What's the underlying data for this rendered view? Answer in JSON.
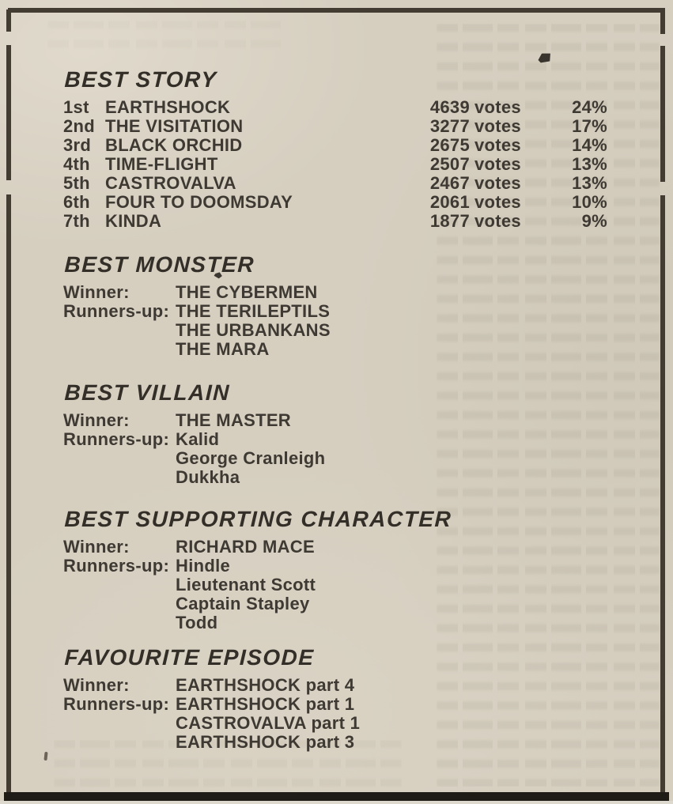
{
  "sections": {
    "best_story": {
      "title": "BEST STORY",
      "rows": [
        {
          "rank": "1st",
          "name": "EARTHSHOCK",
          "votes": "4639",
          "votes_word": "votes",
          "pct": "24%"
        },
        {
          "rank": "2nd",
          "name": "THE VISITATION",
          "votes": "3277",
          "votes_word": "votes",
          "pct": "17%"
        },
        {
          "rank": "3rd",
          "name": "BLACK ORCHID",
          "votes": "2675",
          "votes_word": "votes",
          "pct": "14%"
        },
        {
          "rank": "4th",
          "name": "TIME-FLIGHT",
          "votes": "2507",
          "votes_word": "votes",
          "pct": "13%"
        },
        {
          "rank": "5th",
          "name": "CASTROVALVA",
          "votes": "2467",
          "votes_word": "votes",
          "pct": "13%"
        },
        {
          "rank": "6th",
          "name": "FOUR TO DOOMSDAY",
          "votes": "2061",
          "votes_word": "votes",
          "pct": "10%"
        },
        {
          "rank": "7th",
          "name": "KINDA",
          "votes": "1877",
          "votes_word": "votes",
          "pct": "9%"
        }
      ]
    },
    "best_monster": {
      "title": "BEST MONSTER",
      "winner_label": "Winner:",
      "runners_label": "Runners-up:",
      "winner": "THE CYBERMEN",
      "runners": [
        "THE TERILEPTILS",
        "THE URBANKANS",
        "THE MARA"
      ]
    },
    "best_villain": {
      "title": "BEST VILLAIN",
      "winner_label": "Winner:",
      "runners_label": "Runners-up:",
      "winner": "THE MASTER",
      "runners": [
        "Kalid",
        "George Cranleigh",
        "Dukkha"
      ]
    },
    "best_supporting_character": {
      "title": "BEST SUPPORTING CHARACTER",
      "winner_label": "Winner:",
      "runners_label": "Runners-up:",
      "winner": "RICHARD MACE",
      "runners": [
        "Hindle",
        "Lieutenant Scott",
        "Captain Stapley",
        "Todd"
      ]
    },
    "favourite_episode": {
      "title": "FAVOURITE EPISODE",
      "winner_label": "Winner:",
      "runners_label": "Runners-up:",
      "winner": "EARTHSHOCK part 4",
      "runners": [
        "EARTHSHOCK part 1",
        "CASTROVALVA part 1",
        "EARTHSHOCK part 3"
      ]
    }
  },
  "colors": {
    "paper": "#d6cfc0",
    "ink": "#3e3a33",
    "heading_ink": "#332f28",
    "frame_line": "#423c33",
    "bottom_bar": "#1f1c17"
  }
}
